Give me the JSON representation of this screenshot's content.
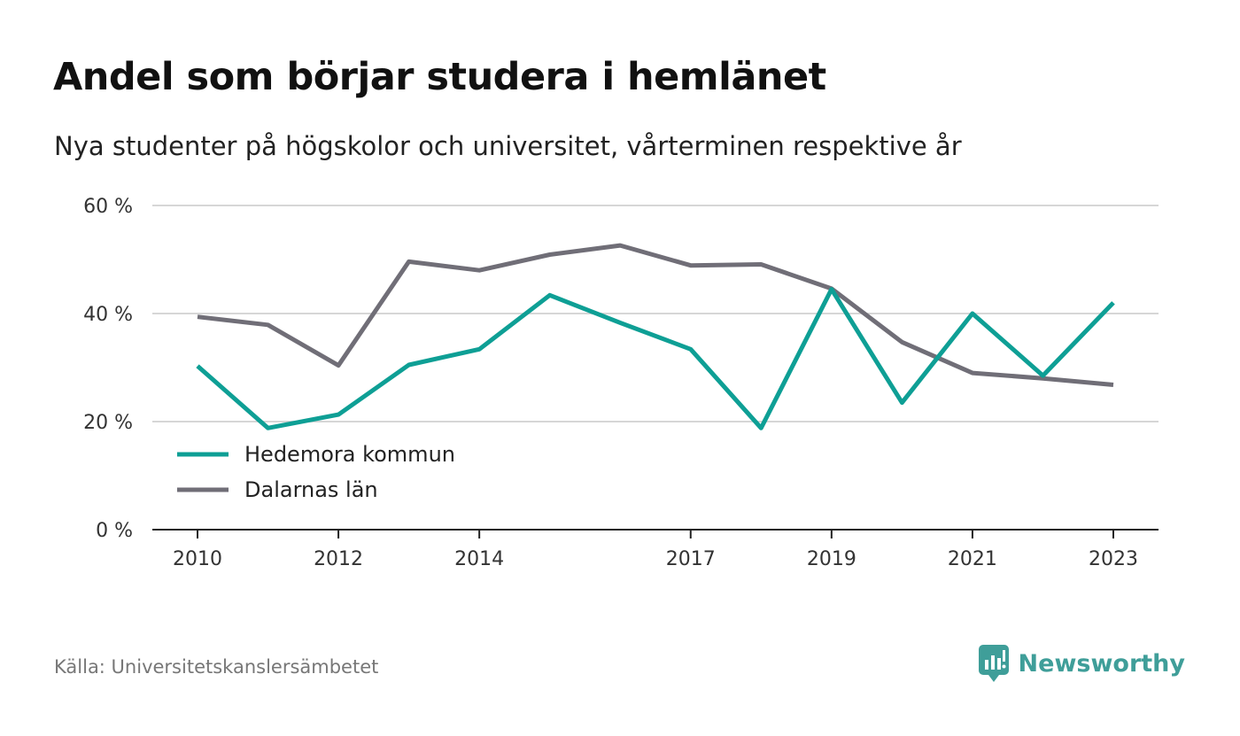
{
  "title": "Andel som börjar studera i hemlänet",
  "subtitle": "Nya studenter på högskolor och universitet, vårterminen respektive år",
  "source": "Källa: Universitetskanslersämbetet",
  "brand": {
    "name": "Newsworthy",
    "icon": "newsworthy-logo-icon",
    "color": "#3f9e99"
  },
  "chart_data": {
    "type": "line",
    "x": [
      2010,
      2011,
      2012,
      2013,
      2014,
      2015,
      2016,
      2017,
      2018,
      2019,
      2020,
      2021,
      2022,
      2023
    ],
    "x_tick_labels": [
      "2010",
      "2012",
      "2014",
      "2017",
      "2019",
      "2021",
      "2023"
    ],
    "y_ticks": [
      0,
      20,
      40,
      60
    ],
    "y_tick_labels": [
      "0 %",
      "20 %",
      "40 %",
      "60 %"
    ],
    "ylim": [
      0,
      60
    ],
    "grid": true,
    "legend_position": "bottom-left",
    "series": [
      {
        "name": "Hedemora kommun",
        "color": "#0e9f95",
        "values": [
          30.3,
          18.8,
          21.3,
          30.5,
          33.4,
          43.4,
          38.3,
          33.4,
          18.8,
          44.5,
          23.5,
          40.0,
          28.5,
          42.0
        ]
      },
      {
        "name": "Dalarnas län",
        "color": "#706e77",
        "values": [
          39.4,
          37.9,
          30.4,
          49.6,
          48.0,
          50.9,
          52.6,
          48.9,
          49.1,
          44.6,
          34.7,
          29.0,
          28.0,
          26.8
        ]
      }
    ]
  }
}
